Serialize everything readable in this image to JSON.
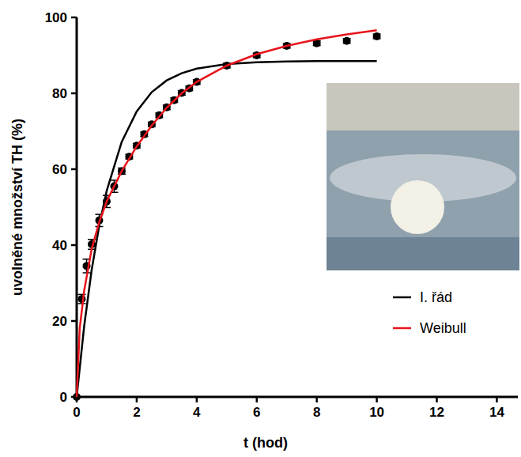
{
  "chart_data": {
    "type": "scatter",
    "x_label": "t (hod)",
    "y_label": "uvolněné množství TH (%)",
    "xlim": [
      0,
      14.7
    ],
    "ylim": [
      0,
      100
    ],
    "xticks": [
      0,
      2,
      4,
      6,
      8,
      10,
      12,
      14
    ],
    "yticks": [
      0,
      20,
      40,
      60,
      80,
      100
    ],
    "grid": false,
    "legend": "right",
    "series": [
      {
        "type": "scatter",
        "color": "#000000",
        "marker": "circle",
        "x": [
          0,
          0.17,
          0.33,
          0.5,
          0.75,
          1,
          1.25,
          1.5,
          1.75,
          2,
          2.25,
          2.5,
          2.75,
          3,
          3.25,
          3.5,
          3.75,
          4,
          5,
          6,
          7,
          8,
          9,
          10
        ],
        "values": [
          0,
          25.8,
          34.5,
          40.2,
          46.5,
          51.5,
          55.5,
          59.5,
          63.3,
          66.2,
          69.2,
          71.8,
          74.2,
          76.3,
          78.2,
          80.1,
          81.3,
          83,
          87.3,
          90,
          92.5,
          93.2,
          93.8,
          95
        ],
        "errors": [
          0,
          1.2,
          1.8,
          1.3,
          1.6,
          1.6,
          1.6,
          0.8,
          0.6,
          0.6,
          0.6,
          0.6,
          0.6,
          0.6,
          0.6,
          0.6,
          0.6,
          0.6,
          0.6,
          0.6,
          0.6,
          0.6,
          0.6,
          0.6
        ]
      },
      {
        "name": "I. řád",
        "type": "line",
        "color": "#000000",
        "line_style": "solid",
        "x": [
          0,
          0.25,
          0.5,
          0.75,
          1,
          1.5,
          2,
          2.5,
          3,
          3.5,
          4,
          5,
          6,
          7,
          8,
          9,
          10
        ],
        "values": [
          0,
          18.7,
          33.5,
          45.1,
          54.3,
          67.2,
          75.2,
          80.3,
          83.4,
          85.3,
          86.5,
          87.7,
          88.2,
          88.4,
          88.5,
          88.5,
          88.5
        ]
      },
      {
        "name": "Weibull",
        "type": "line",
        "color": "#e8141b",
        "line_style": "solid",
        "x": [
          0,
          0.1,
          0.25,
          0.5,
          0.75,
          1,
          1.5,
          2,
          2.5,
          3,
          3.5,
          4,
          5,
          6,
          7,
          8,
          9,
          10
        ],
        "values": [
          0,
          18,
          28,
          39,
          46,
          51.5,
          59.5,
          66,
          71.5,
          76.2,
          80,
          83,
          87.3,
          90.3,
          92.5,
          94.2,
          95.5,
          96.6
        ]
      }
    ]
  }
}
